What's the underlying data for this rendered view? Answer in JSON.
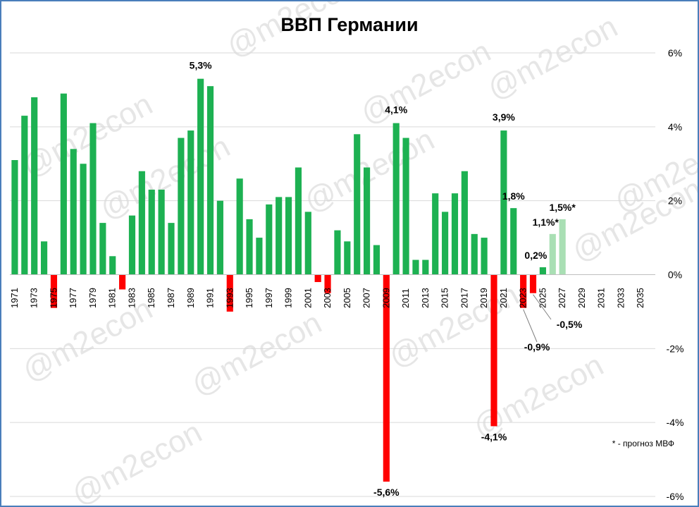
{
  "chart_data": {
    "type": "bar",
    "title": "ВВП Германии",
    "y_tick_labels": [
      "6%",
      "4%",
      "2%",
      "0%",
      "-2%",
      "-4%",
      "-6%"
    ],
    "ylim": [
      -6,
      6
    ],
    "y_unit": "%",
    "grid": true,
    "x_tick_labels": [
      "1971",
      "1973",
      "1975",
      "1977",
      "1979",
      "1981",
      "1983",
      "1985",
      "1987",
      "1989",
      "1991",
      "1993",
      "1995",
      "1997",
      "1999",
      "2001",
      "2003",
      "2005",
      "2007",
      "2009",
      "2011",
      "2013",
      "2015",
      "2017",
      "2019",
      "2021",
      "2023",
      "2025",
      "2027",
      "2029",
      "2031",
      "2033",
      "2035"
    ],
    "years": [
      1971,
      1972,
      1973,
      1974,
      1975,
      1976,
      1977,
      1978,
      1979,
      1980,
      1981,
      1982,
      1983,
      1984,
      1985,
      1986,
      1987,
      1988,
      1989,
      1990,
      1991,
      1992,
      1993,
      1994,
      1995,
      1996,
      1997,
      1998,
      1999,
      2000,
      2001,
      2002,
      2003,
      2004,
      2005,
      2006,
      2007,
      2008,
      2009,
      2010,
      2011,
      2012,
      2013,
      2014,
      2015,
      2016,
      2017,
      2018,
      2019,
      2020,
      2021,
      2022,
      2023,
      2024,
      2025,
      2026,
      2027
    ],
    "values": [
      3.1,
      4.3,
      4.8,
      0.9,
      -0.9,
      4.9,
      3.4,
      3.0,
      4.1,
      1.4,
      0.5,
      -0.4,
      1.6,
      2.8,
      2.3,
      2.3,
      1.4,
      3.7,
      3.9,
      5.3,
      5.1,
      2.0,
      -1.0,
      2.6,
      1.5,
      1.0,
      1.9,
      2.1,
      2.1,
      2.9,
      1.7,
      -0.2,
      -0.5,
      1.2,
      0.9,
      3.8,
      2.9,
      0.8,
      -5.6,
      4.1,
      3.7,
      0.4,
      0.4,
      2.2,
      1.7,
      2.2,
      2.8,
      1.1,
      1.0,
      -4.1,
      3.9,
      1.8,
      -0.9,
      -0.5,
      0.2,
      1.1,
      1.5
    ],
    "forecast_years": [
      2026,
      2027
    ],
    "colors": {
      "positive": "#1db152",
      "negative": "#ff0000",
      "forecast": "#a9dfb4"
    },
    "data_labels": [
      {
        "year": 1990,
        "text": "5,3%"
      },
      {
        "year": 2009,
        "text": "-5,6%"
      },
      {
        "year": 2010,
        "text": "4,1%"
      },
      {
        "year": 2020,
        "text": "-4,1%"
      },
      {
        "year": 2021,
        "text": "3,9%"
      },
      {
        "year": 2022,
        "text": "1,8%"
      },
      {
        "year": 2023,
        "text": "-0,9%"
      },
      {
        "year": 2024,
        "text": "-0,5%"
      },
      {
        "year": 2025,
        "text": "0,2%"
      },
      {
        "year": 2026,
        "text": "1,1%*"
      },
      {
        "year": 2027,
        "text": "1,5%*"
      }
    ],
    "footnote": "* - прогноз МВФ",
    "watermark": "@m2econ"
  }
}
